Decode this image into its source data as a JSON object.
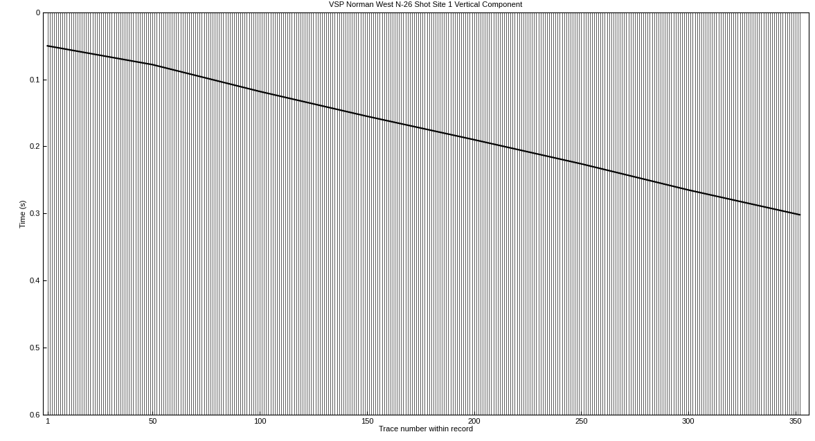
{
  "chart_data": {
    "type": "wiggle",
    "title": "VSP Norman West N-26 Shot Site 1 Vertical Component",
    "x_label": "Trace number within record",
    "y_label": "Time (s)",
    "trace_range": [
      1,
      352
    ],
    "first_break": {
      "x": [
        1,
        50,
        100,
        150,
        200,
        250,
        300,
        352
      ],
      "values": [
        0.05,
        0.078,
        0.118,
        0.155,
        0.19,
        0.226,
        0.265,
        0.302
      ]
    },
    "color": "#000000",
    "xlim": [
      -1,
      356
    ],
    "xticks": [
      1,
      50,
      100,
      150,
      200,
      250,
      300,
      350
    ],
    "ylim": [
      0.6,
      0
    ],
    "yticks": [
      0,
      0.1,
      0.2,
      0.3,
      0.4,
      0.5,
      0.6
    ],
    "grid": false
  }
}
